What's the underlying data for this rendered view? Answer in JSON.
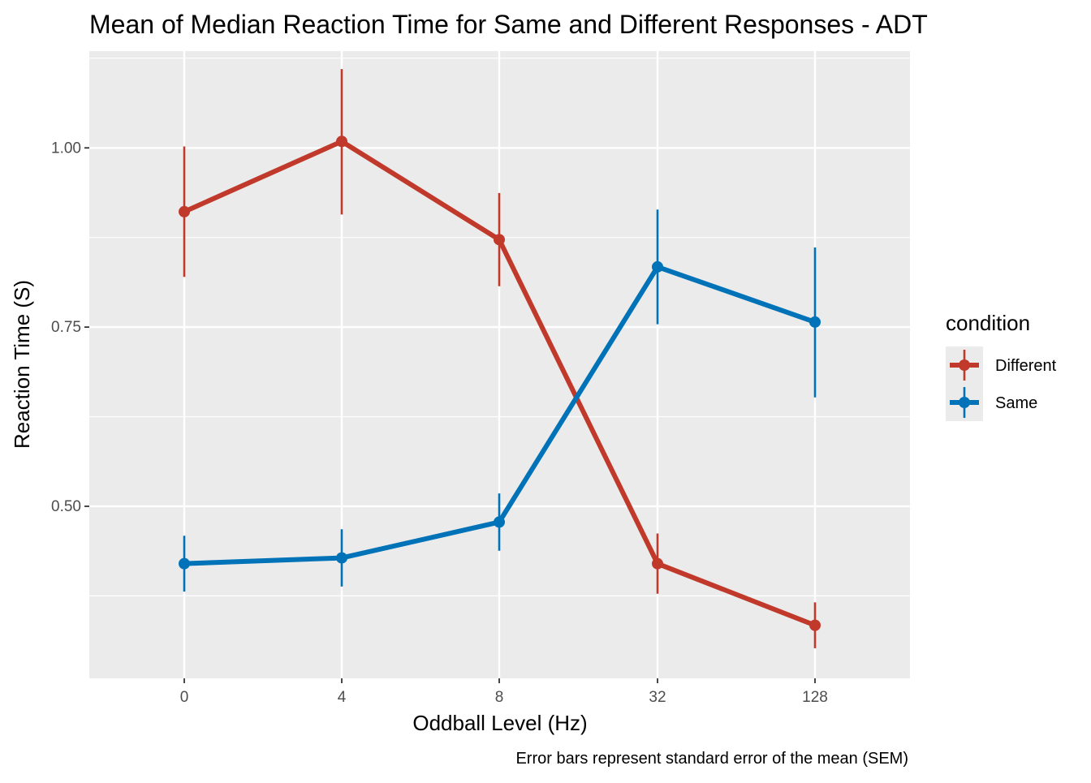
{
  "chart_data": {
    "type": "line",
    "title": "Mean of Median Reaction Time for Same and Different Responses - ADT",
    "xlabel": "Oddball Level (Hz)",
    "ylabel": "Reaction Time (S)",
    "caption": "Error bars represent standard error of the mean (SEM)",
    "categories": [
      "0",
      "4",
      "8",
      "32",
      "128"
    ],
    "x_scale": "discrete",
    "ylim": [
      0.26,
      1.135
    ],
    "yticks": [
      0.5,
      0.75,
      1.0
    ],
    "ytick_labels": [
      "0.50",
      "0.75",
      "1.00"
    ],
    "grid": true,
    "legend": {
      "title": "condition",
      "position": "right"
    },
    "series": [
      {
        "name": "Different",
        "color": "#c0392b",
        "values": [
          0.911,
          1.009,
          0.872,
          0.42,
          0.334
        ],
        "error_low": [
          0.82,
          0.907,
          0.807,
          0.378,
          0.302
        ],
        "error_high": [
          1.002,
          1.11,
          0.937,
          0.462,
          0.366
        ]
      },
      {
        "name": "Same",
        "color": "#0072b8",
        "values": [
          0.42,
          0.428,
          0.478,
          0.834,
          0.757
        ],
        "error_low": [
          0.381,
          0.388,
          0.438,
          0.754,
          0.652
        ],
        "error_high": [
          0.459,
          0.468,
          0.518,
          0.914,
          0.861
        ]
      }
    ]
  }
}
